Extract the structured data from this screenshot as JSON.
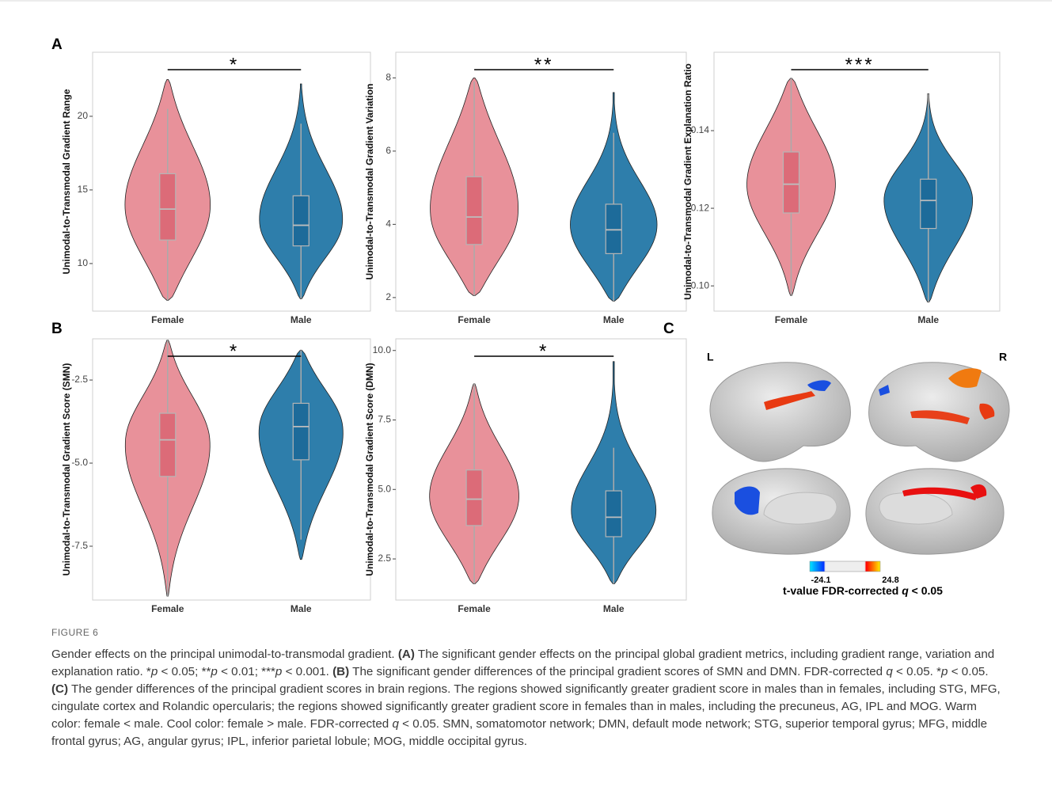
{
  "figure": {
    "panel_labels": [
      "A",
      "B",
      "C"
    ],
    "brain": {
      "hemisphere_labels": [
        "L",
        "R"
      ],
      "colorbar": {
        "min": -24.1,
        "max": 24.8
      },
      "colorbar_caption": [
        {
          "text": "t-value  FDR-corrected "
        },
        {
          "text": "q",
          "style": "i"
        },
        {
          "text": " < 0.05"
        }
      ]
    },
    "caption": {
      "label": "FIGURE 6",
      "runs": [
        {
          "text": "Gender effects on the principal unimodal-to-transmodal gradient. "
        },
        {
          "text": "(A)",
          "style": "b"
        },
        {
          "text": " The significant gender effects on the principal global gradient metrics, including gradient range, variation and explanation ratio. *"
        },
        {
          "text": "p",
          "style": "i"
        },
        {
          "text": " < 0.05; **"
        },
        {
          "text": "p",
          "style": "i"
        },
        {
          "text": " < 0.01; ***"
        },
        {
          "text": "p",
          "style": "i"
        },
        {
          "text": " < 0.001. "
        },
        {
          "text": "(B)",
          "style": "b"
        },
        {
          "text": " The significant gender differences of the principal gradient scores of SMN and DMN. FDR-corrected "
        },
        {
          "text": "q",
          "style": "i"
        },
        {
          "text": " < 0.05. *"
        },
        {
          "text": "p",
          "style": "i"
        },
        {
          "text": " < 0.05. "
        },
        {
          "text": "(C)",
          "style": "b"
        },
        {
          "text": " The gender differences of the principal gradient scores in brain regions. The regions showed significantly greater gradient score in males than in females, including STG, MFG, cingulate cortex and Rolandic opercularis; the regions showed significantly greater gradient score in females than in males, including the precuneus, AG, IPL and MOG. Warm color: female < male. Cool color: female > male. FDR-corrected "
        },
        {
          "text": "q",
          "style": "i"
        },
        {
          "text": " < 0.05. SMN, somatomotor network; DMN, default mode network; STG, superior temporal gyrus; MFG, middle frontal gyrus; AG, angular gyrus; IPL, inferior parietal lobule; MOG, middle occipital gyrus."
        }
      ]
    }
  },
  "chart_data": [
    {
      "type": "violin",
      "ylabel": "Unimodal-to-Transmodal Gradient Range",
      "significance": "*",
      "categories": [
        "Female",
        "Male"
      ],
      "ylim": [
        6.77,
        24.35
      ],
      "yticks": [
        10,
        15,
        20
      ],
      "groups": [
        {
          "color": "#e8919a",
          "box_color": "#dc6b78",
          "min": 7.5,
          "max": 22.5,
          "whisker_low": 7.5,
          "whisker_high": 20.5,
          "q1": 11.6,
          "median": 13.7,
          "q3": 16.1
        },
        {
          "color": "#2e7eab",
          "box_color": "#1d6b9a",
          "min": 7.6,
          "max": 22.2,
          "whisker_low": 7.6,
          "whisker_high": 19.5,
          "q1": 11.2,
          "median": 12.6,
          "q3": 14.6
        }
      ]
    },
    {
      "type": "violin",
      "ylabel": "Unimodal-to-Transmodal Gradient Variation",
      "significance": "**",
      "categories": [
        "Female",
        "Male"
      ],
      "ylim": [
        1.63,
        8.7
      ],
      "yticks": [
        2,
        4,
        6,
        8
      ],
      "groups": [
        {
          "color": "#e8919a",
          "box_color": "#dc6b78",
          "min": 2.05,
          "max": 8.0,
          "whisker_low": 2.05,
          "whisker_high": 7.9,
          "q1": 3.45,
          "median": 4.2,
          "q3": 5.3
        },
        {
          "color": "#2e7eab",
          "box_color": "#1d6b9a",
          "min": 1.9,
          "max": 7.6,
          "whisker_low": 1.9,
          "whisker_high": 6.5,
          "q1": 3.2,
          "median": 3.85,
          "q3": 4.55
        }
      ]
    },
    {
      "type": "violin",
      "ylabel": "Unimodal-to-Transmodal Gradient Explanation Ratio",
      "significance": "***",
      "categories": [
        "Female",
        "Male"
      ],
      "ylim": [
        0.0935,
        0.1602
      ],
      "yticks": [
        {
          "value": 0.1,
          "label": "0.10"
        },
        {
          "value": 0.12,
          "label": "0.12"
        },
        {
          "value": 0.14,
          "label": "0.14"
        }
      ],
      "groups": [
        {
          "color": "#e8919a",
          "box_color": "#dc6b78",
          "min": 0.0975,
          "max": 0.1535,
          "whisker_low": 0.0975,
          "whisker_high": 0.1535,
          "q1": 0.1188,
          "median": 0.1262,
          "q3": 0.1345
        },
        {
          "color": "#2e7eab",
          "box_color": "#1d6b9a",
          "min": 0.0958,
          "max": 0.1495,
          "whisker_low": 0.0958,
          "whisker_high": 0.1495,
          "q1": 0.1148,
          "median": 0.122,
          "q3": 0.1275
        }
      ]
    },
    {
      "type": "violin",
      "ylabel": "Unimodal-to-Transmodal Gradient Score (SMN)",
      "significance": "*",
      "categories": [
        "Female",
        "Male"
      ],
      "ylim": [
        -9.12,
        -1.26
      ],
      "yticks": [
        -2.5,
        {
          "value": -5,
          "label": "-5.0"
        },
        -7.5
      ],
      "groups": [
        {
          "color": "#e8919a",
          "box_color": "#dc6b78",
          "min": -9.0,
          "max": -1.3,
          "whisker_low": -9.0,
          "whisker_high": -1.3,
          "q1": -5.4,
          "median": -4.3,
          "q3": -3.5
        },
        {
          "color": "#2e7eab",
          "box_color": "#1d6b9a",
          "min": -7.9,
          "max": -1.6,
          "whisker_low": -7.3,
          "whisker_high": -1.6,
          "q1": -4.9,
          "median": -3.9,
          "q3": -3.2
        }
      ]
    },
    {
      "type": "violin",
      "ylabel": "Unimodal-to-Transmodal Gradient Score (DMN)",
      "significance": "*",
      "categories": [
        "Female",
        "Male"
      ],
      "ylim": [
        1.02,
        10.42
      ],
      "yticks": [
        2.5,
        {
          "value": 5,
          "label": "5.0"
        },
        7.5,
        {
          "value": 10,
          "label": "10.0"
        }
      ],
      "groups": [
        {
          "color": "#e8919a",
          "box_color": "#dc6b78",
          "min": 1.6,
          "max": 8.8,
          "whisker_low": 1.6,
          "whisker_high": 8.8,
          "q1": 3.7,
          "median": 4.65,
          "q3": 5.7
        },
        {
          "color": "#2e7eab",
          "box_color": "#1d6b9a",
          "min": 1.6,
          "max": 9.6,
          "whisker_low": 1.6,
          "whisker_high": 6.5,
          "q1": 3.3,
          "median": 4.0,
          "q3": 4.95
        }
      ]
    }
  ]
}
